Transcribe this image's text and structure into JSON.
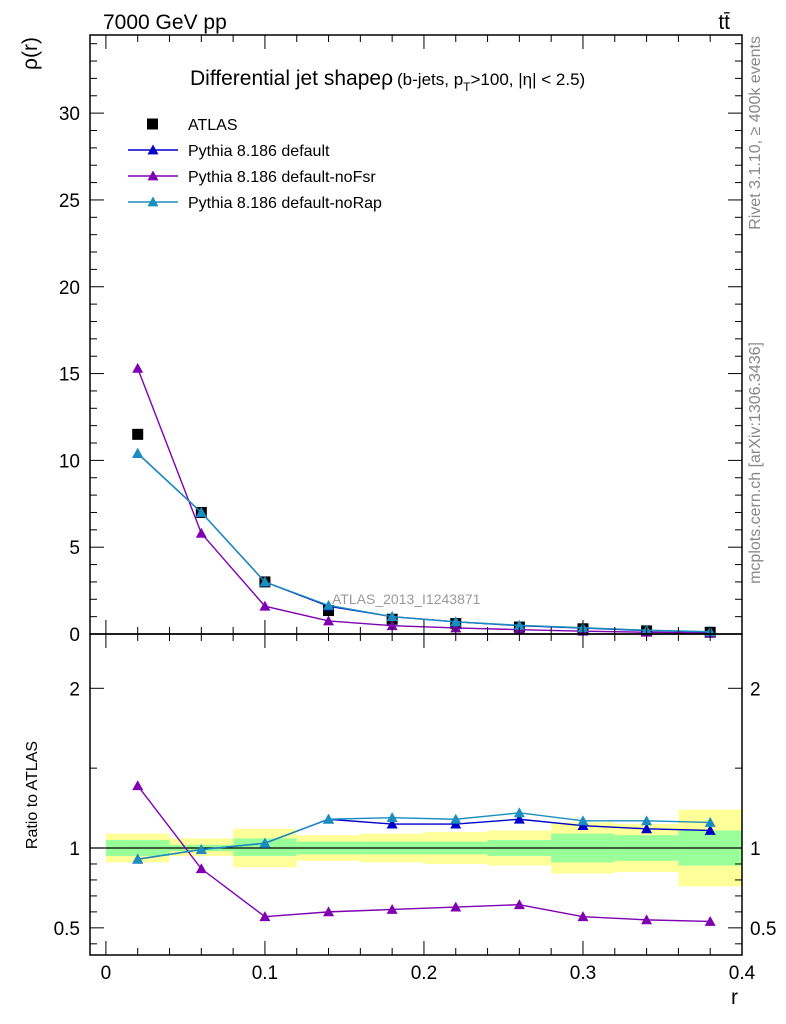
{
  "header": {
    "energy_label": "7000 GeV pp",
    "process_label": "tt̄"
  },
  "title": {
    "main": "Differential jet shape",
    "symbol": "ρ",
    "cuts_pre": "(b-jets, p",
    "cuts_sub": "T",
    "cuts_post": ">100, |η| < 2.5)"
  },
  "side_labels": {
    "rivet": "Rivet 3.1.10, ≥ 400k events",
    "mcplots": "mcplots.cern.ch [arXiv:1306.3436]"
  },
  "analysis_label": "ATLAS_2013_I1243871",
  "colors": {
    "data": "#000000",
    "default": "#0000cc",
    "noFsr": "#7f00b2",
    "noRap": "#1a8fbf",
    "band_outer": "#ffff99",
    "band_inner": "#99ff99"
  },
  "chart_data": [
    {
      "type": "line",
      "panel": "main",
      "ylabel": "ρ(r)",
      "xlim": [
        -0.01,
        0.4
      ],
      "ylim": [
        0,
        34.5
      ],
      "yticks": [
        0,
        5,
        10,
        15,
        20,
        25,
        30
      ],
      "x": [
        0.02,
        0.06,
        0.1,
        0.14,
        0.18,
        0.22,
        0.26,
        0.3,
        0.34,
        0.38
      ],
      "series": [
        {
          "name": "ATLAS",
          "key": "data",
          "marker": "square",
          "values": [
            11.5,
            7.0,
            3.0,
            1.35,
            0.85,
            0.6,
            0.4,
            0.3,
            0.18,
            0.1
          ]
        },
        {
          "name": "Pythia 8.186 default",
          "key": "default",
          "marker": "triangle",
          "values": [
            10.4,
            7.0,
            3.0,
            1.6,
            1.0,
            0.7,
            0.48,
            0.34,
            0.2,
            0.12
          ]
        },
        {
          "name": "Pythia 8.186 default-noFsr",
          "key": "noFsr",
          "marker": "triangle",
          "values": [
            15.3,
            5.8,
            1.6,
            0.75,
            0.48,
            0.35,
            0.25,
            0.16,
            0.1,
            0.05
          ]
        },
        {
          "name": "Pythia 8.186 default-noRap",
          "key": "noRap",
          "marker": "triangle",
          "values": [
            10.4,
            7.0,
            3.0,
            1.65,
            1.0,
            0.7,
            0.5,
            0.36,
            0.22,
            0.13
          ]
        }
      ]
    },
    {
      "type": "line",
      "panel": "ratio",
      "xlabel": "r",
      "ylabel": "Ratio to ATLAS",
      "xlim": [
        -0.01,
        0.4
      ],
      "ylim": [
        0.33,
        2.34
      ],
      "xticks": [
        0,
        0.1,
        0.2,
        0.3,
        0.4
      ],
      "yticks": [
        0.5,
        1,
        2
      ],
      "bins": [
        [
          0.0,
          0.04
        ],
        [
          0.04,
          0.08
        ],
        [
          0.08,
          0.12
        ],
        [
          0.12,
          0.16
        ],
        [
          0.16,
          0.2
        ],
        [
          0.2,
          0.24
        ],
        [
          0.24,
          0.28
        ],
        [
          0.28,
          0.32
        ],
        [
          0.32,
          0.36
        ],
        [
          0.36,
          0.4
        ]
      ],
      "band_outer": [
        [
          0.91,
          1.09
        ],
        [
          0.95,
          1.06
        ],
        [
          0.88,
          1.12
        ],
        [
          0.92,
          1.08
        ],
        [
          0.91,
          1.09
        ],
        [
          0.9,
          1.1
        ],
        [
          0.89,
          1.11
        ],
        [
          0.84,
          1.16
        ],
        [
          0.85,
          1.15
        ],
        [
          0.76,
          1.24
        ]
      ],
      "band_inner": [
        [
          0.95,
          1.05
        ],
        [
          0.98,
          1.02
        ],
        [
          0.95,
          1.06
        ],
        [
          0.96,
          1.04
        ],
        [
          0.96,
          1.04
        ],
        [
          0.96,
          1.04
        ],
        [
          0.95,
          1.05
        ],
        [
          0.91,
          1.09
        ],
        [
          0.92,
          1.08
        ],
        [
          0.89,
          1.11
        ]
      ],
      "x": [
        0.02,
        0.06,
        0.1,
        0.14,
        0.18,
        0.22,
        0.26,
        0.3,
        0.34,
        0.38
      ],
      "series": [
        {
          "name": "Pythia 8.186 default",
          "key": "default",
          "values": [
            0.93,
            0.99,
            1.03,
            1.18,
            1.15,
            1.15,
            1.18,
            1.14,
            1.12,
            1.11
          ]
        },
        {
          "name": "Pythia 8.186 default-noFsr",
          "key": "noFsr",
          "values": [
            1.39,
            0.87,
            0.57,
            0.6,
            0.615,
            0.63,
            0.645,
            0.57,
            0.55,
            0.54
          ]
        },
        {
          "name": "Pythia 8.186 default-noRap",
          "key": "noRap",
          "values": [
            0.93,
            0.99,
            1.03,
            1.18,
            1.19,
            1.18,
            1.22,
            1.17,
            1.17,
            1.16
          ]
        }
      ]
    }
  ]
}
